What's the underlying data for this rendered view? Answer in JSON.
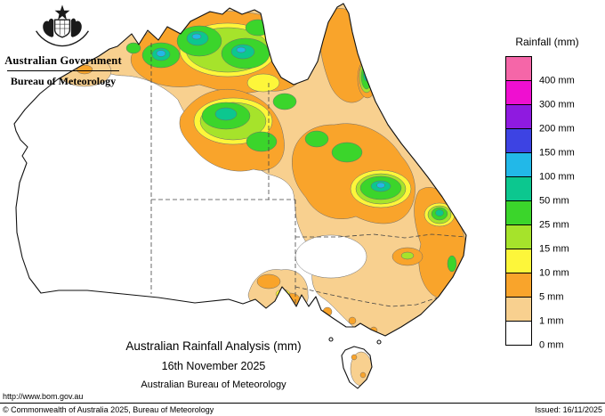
{
  "header": {
    "government_label": "Australian Government",
    "bureau_label": "Bureau of Meteorology"
  },
  "legend": {
    "title": "Rainfall (mm)",
    "entries": [
      {
        "label": "400 mm",
        "color_key": "pink"
      },
      {
        "label": "300 mm",
        "color_key": "magenta"
      },
      {
        "label": "200 mm",
        "color_key": "purple"
      },
      {
        "label": "150 mm",
        "color_key": "blue"
      },
      {
        "label": "100 mm",
        "color_key": "cyan"
      },
      {
        "label": "50 mm",
        "color_key": "teal"
      },
      {
        "label": "25 mm",
        "color_key": "green"
      },
      {
        "label": "15 mm",
        "color_key": "yellow_green"
      },
      {
        "label": "10 mm",
        "color_key": "yellow"
      },
      {
        "label": "5 mm",
        "color_key": "orange"
      },
      {
        "label": "1 mm",
        "color_key": "tan"
      },
      {
        "label": "0 mm",
        "color_key": "white"
      }
    ]
  },
  "map": {
    "palette": {
      "white": "#ffffff",
      "tan": "#f8d08f",
      "orange": "#f9a42b",
      "yellow": "#fdf63a",
      "yellow_green": "#a6e32b",
      "green": "#3bd52b",
      "teal": "#0cc78f",
      "cyan": "#22b8e8",
      "blue": "#3d43e3",
      "purple": "#8f1ae0",
      "magenta": "#ef0fd0",
      "pink": "#f566a8"
    },
    "coast_color": "#111111",
    "border_color": "#444444"
  },
  "caption": {
    "title": "Australian Rainfall Analysis (mm)",
    "date": "16th November 2025",
    "org": "Australian Bureau of Meteorology"
  },
  "footer": {
    "url": "http://www.bom.gov.au",
    "copyright": "© Commonwealth of Australia 2025, Bureau of Meteorology",
    "issued": "Issued: 16/11/2025"
  }
}
